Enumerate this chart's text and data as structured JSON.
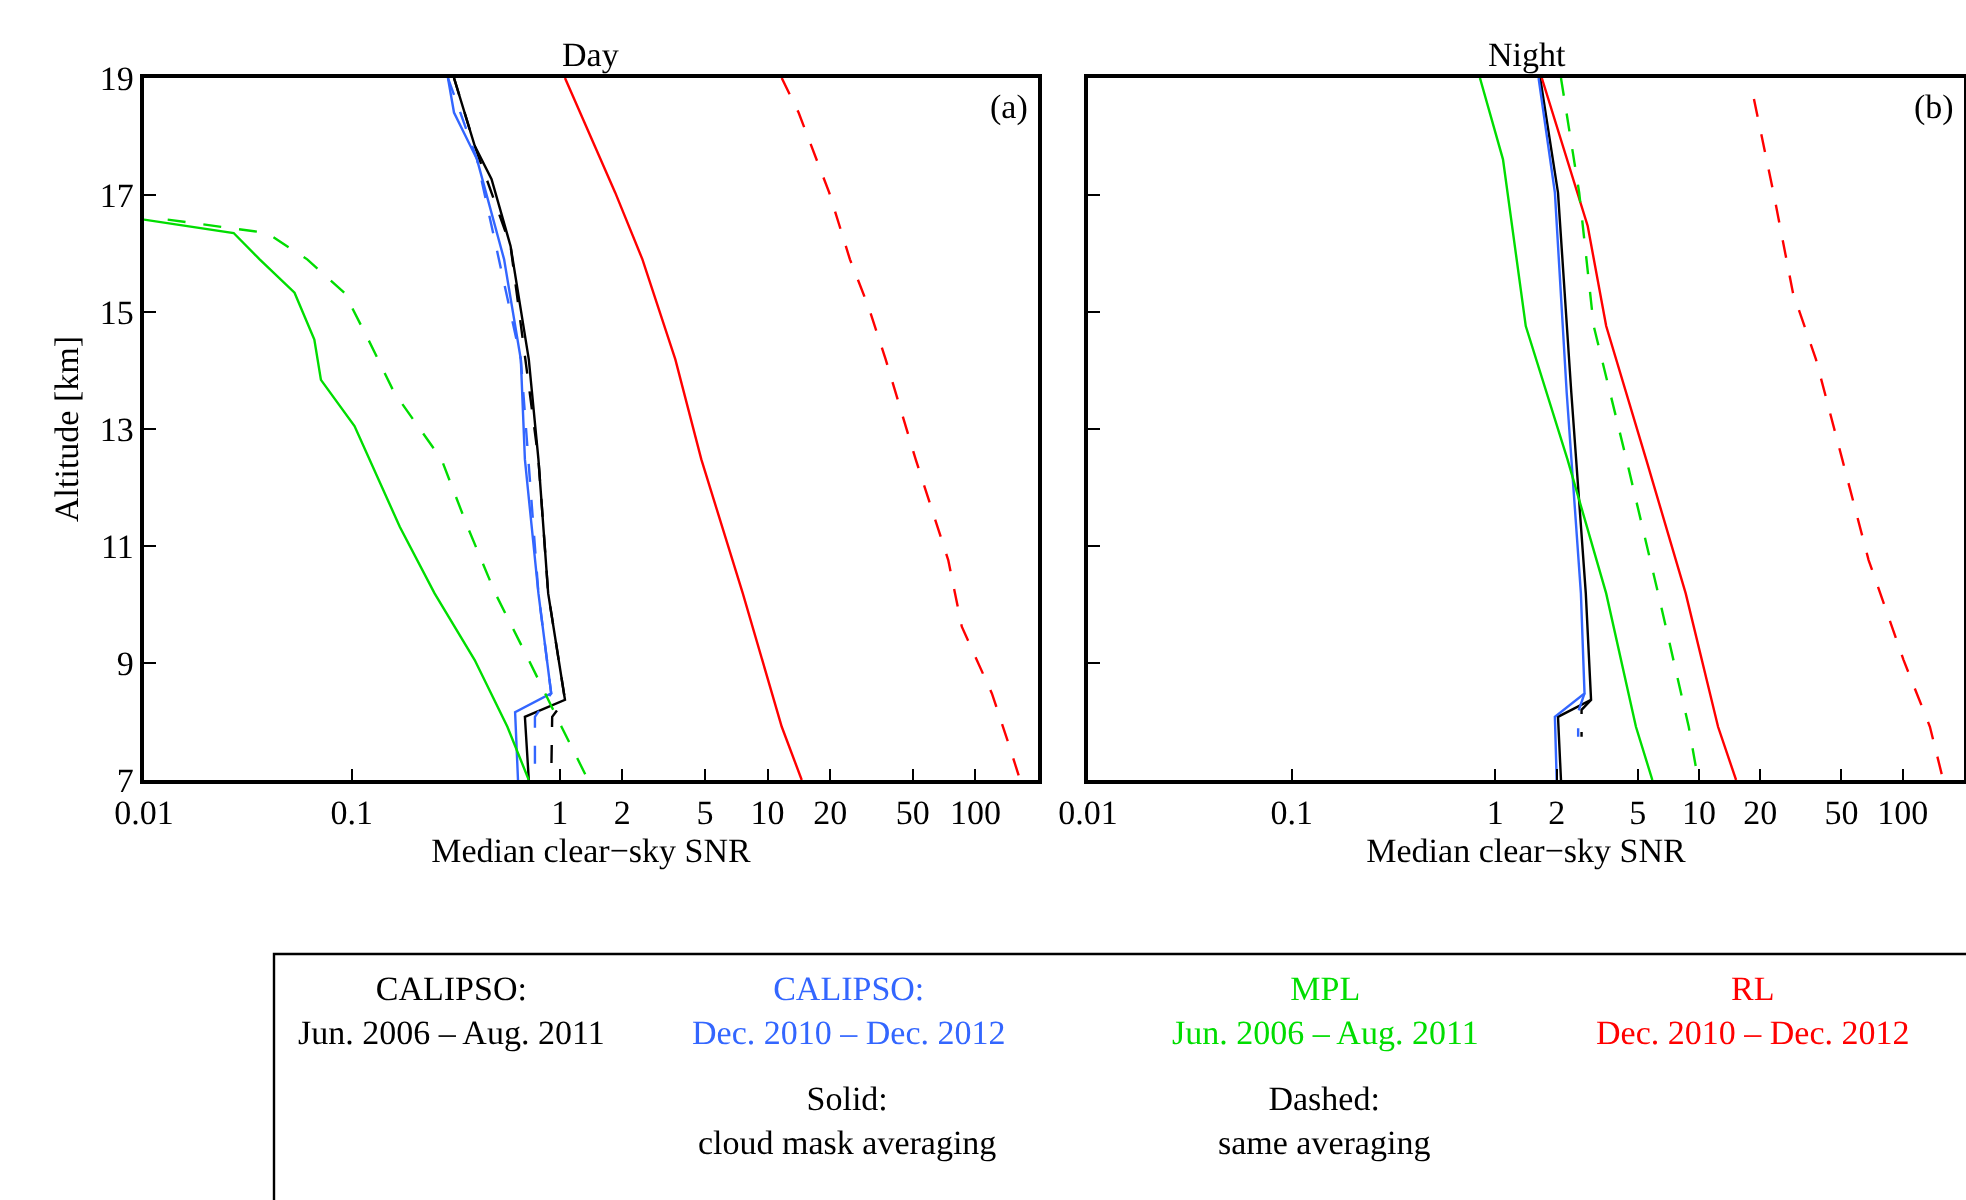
{
  "chart_data": [
    {
      "type": "line",
      "title": "Day",
      "xlabel": "Median clear−sky SNR",
      "ylabel": "Altitude [km]",
      "log": "x",
      "xlim": [
        0.01,
        200
      ],
      "ylim": [
        7,
        19
      ],
      "xticks": [
        0.01,
        0.1,
        1,
        2,
        5,
        10,
        20,
        50,
        100
      ],
      "yticks": [
        7,
        9,
        11,
        13,
        15,
        17,
        19
      ],
      "legend": "bottom",
      "annotations": [
        "(a)",
        "Solid:\ncloud mask averaging",
        "Dashed:\nsame averaging"
      ],
      "series": [
        {
          "name": "CALIPSO:\nJun. 2006 – Aug. 2011",
          "color": "#000000",
          "line_style": "solid",
          "x": [
            0.31,
            0.39,
            0.47,
            0.58,
            0.71,
            0.79,
            0.88,
            1.06,
            0.68,
            0.71
          ],
          "values": [
            19,
            17.84,
            17.27,
            16.13,
            14.19,
            12.48,
            10.19,
            8.37,
            8.08,
            7
          ]
        },
        {
          "name": "CALIPSO:\nDec. 2010 – Dec. 2012",
          "color": "#3366ff",
          "line_style": "solid",
          "x": [
            0.29,
            0.31,
            0.4,
            0.54,
            0.65,
            0.68,
            0.79,
            0.91,
            0.61,
            0.63
          ],
          "values": [
            19,
            18.41,
            17.61,
            15.9,
            14.19,
            12.48,
            10.19,
            8.48,
            8.16,
            7
          ]
        },
        {
          "name": "MPL\nJun. 2006 – Aug. 2011",
          "color": "#00dd00",
          "line_style": "solid",
          "x": [
            0.01,
            0.027,
            0.036,
            0.053,
            0.066,
            0.071,
            0.103,
            0.17,
            0.25,
            0.39,
            0.56,
            0.71
          ],
          "values": [
            16.58,
            16.35,
            15.9,
            15.33,
            14.53,
            13.84,
            13.05,
            11.33,
            10.19,
            9.05,
            7.91,
            7
          ]
        },
        {
          "name": "RL\nDec. 2010 – Dec. 2012",
          "color": "#ff0000",
          "line_style": "solid",
          "x": [
            1.06,
            1.85,
            2.5,
            3.6,
            4.8,
            7.6,
            11.7,
            14.6
          ],
          "values": [
            19,
            17.04,
            15.9,
            14.19,
            12.48,
            10.19,
            7.91,
            7
          ]
        },
        {
          "color": "#000000",
          "line_style": "dashed",
          "x": [
            0.31,
            0.39,
            0.58,
            0.79,
            0.88,
            1.06,
            0.92,
            0.91
          ],
          "values": [
            19,
            17.84,
            16.13,
            12.48,
            10.19,
            8.37,
            8.08,
            7
          ]
        },
        {
          "color": "#3366ff",
          "line_style": "dashed",
          "x": [
            0.29,
            0.4,
            0.65,
            0.79,
            0.91,
            0.76,
            0.76
          ],
          "values": [
            19,
            17.61,
            14.19,
            10.19,
            8.48,
            8.08,
            7
          ]
        },
        {
          "color": "#00dd00",
          "line_style": "dashed",
          "x": [
            0.013,
            0.039,
            0.061,
            0.092,
            0.12,
            0.16,
            0.27,
            0.36,
            0.49,
            0.71,
            1.02,
            1.37
          ],
          "values": [
            16.58,
            16.35,
            15.9,
            15.33,
            14.53,
            13.62,
            12.48,
            11.33,
            10.19,
            9.05,
            7.91,
            7
          ]
        },
        {
          "color": "#ff0000",
          "line_style": "dashed",
          "x": [
            11.7,
            14.1,
            19.8,
            24.9,
            30.5,
            37,
            51.6,
            74,
            86,
            120,
            146,
            164
          ],
          "values": [
            19,
            18.41,
            17.04,
            15.9,
            15.1,
            14.19,
            12.48,
            10.76,
            9.62,
            8.48,
            7.57,
            7
          ]
        }
      ]
    },
    {
      "type": "line",
      "title": "Night",
      "xlabel": "Median clear−sky SNR",
      "log": "x",
      "xlim": [
        0.01,
        200
      ],
      "ylim": [
        7,
        19
      ],
      "xticks": [
        0.01,
        0.1,
        1,
        2,
        5,
        10,
        20,
        50,
        100
      ],
      "yticks": [
        7,
        9,
        11,
        13,
        15,
        17,
        19
      ],
      "tick_labels": "x",
      "annotations": [
        "(b)"
      ],
      "series": [
        {
          "color": "#000000",
          "line_style": "solid",
          "x": [
            1.66,
            2.03,
            2.36,
            2.78,
            2.95,
            2.03,
            2.1
          ],
          "values": [
            19,
            17.04,
            13.62,
            10.19,
            8.37,
            8.08,
            7
          ]
        },
        {
          "color": "#3366ff",
          "line_style": "solid",
          "x": [
            1.63,
            1.96,
            2.24,
            2.63,
            2.74,
            1.96,
            2.0
          ],
          "values": [
            19,
            17.04,
            13.62,
            10.19,
            8.48,
            8.08,
            7
          ]
        },
        {
          "color": "#00dd00",
          "line_style": "solid",
          "x": [
            0.84,
            1.09,
            1.41,
            2.26,
            3.5,
            4.9,
            5.9
          ],
          "values": [
            19,
            17.61,
            14.76,
            12.48,
            10.19,
            7.91,
            7
          ]
        },
        {
          "color": "#ff0000",
          "line_style": "solid",
          "x": [
            1.69,
            2.84,
            3.5,
            5.5,
            8.6,
            12.4,
            15.2
          ],
          "values": [
            19,
            16.47,
            14.76,
            12.48,
            10.19,
            7.91,
            7
          ]
        },
        {
          "color": "#000000",
          "line_style": "dashed",
          "x": [
            2.95,
            2.65,
            2.65
          ],
          "values": [
            8.37,
            8.2,
            7.74
          ]
        },
        {
          "color": "#3366ff",
          "line_style": "dashed",
          "x": [
            2.74,
            2.55,
            2.55
          ],
          "values": [
            8.48,
            8.16,
            7.74
          ]
        },
        {
          "color": "#00dd00",
          "line_style": "dashed",
          "x": [
            2.1,
            2.58,
            3.04,
            4.4,
            6.3,
            8.9,
            9.9
          ],
          "values": [
            19,
            17.04,
            14.76,
            12.48,
            10.19,
            7.91,
            7
          ]
        },
        {
          "color": "#ff0000",
          "line_style": "dashed",
          "x": [
            18.6,
            23.2,
            28.9,
            37.5,
            50.5,
            68,
            101,
            136,
            158
          ],
          "values": [
            18.64,
            17.04,
            15.33,
            14.19,
            12.48,
            10.76,
            9.05,
            7.91,
            7
          ]
        }
      ]
    }
  ]
}
